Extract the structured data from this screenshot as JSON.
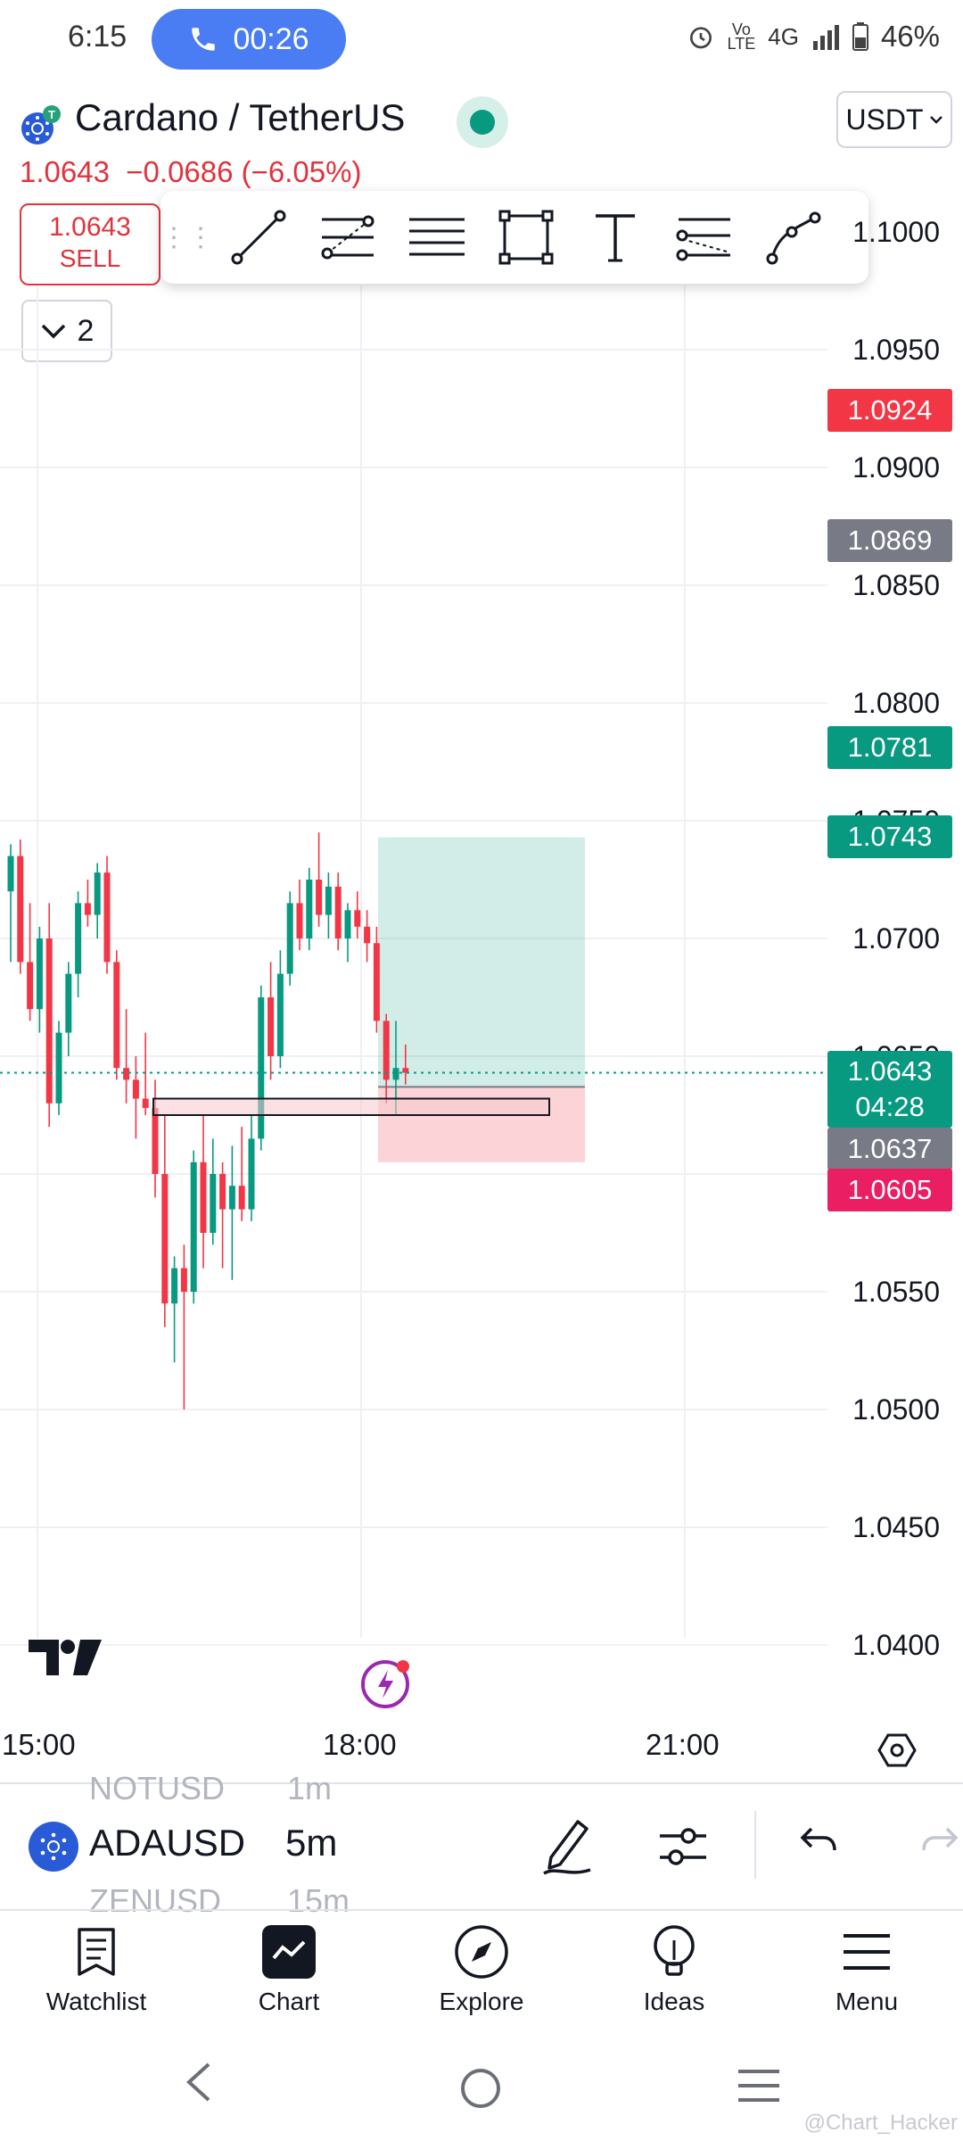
{
  "status_bar": {
    "time": "6:15",
    "call_timer": "00:26",
    "network": "4G",
    "battery": "46%"
  },
  "header": {
    "symbol_title": "Cardano / TetherUS",
    "currency": "USDT",
    "last_price": "1.0643",
    "change": "−0.0686 (−6.05%)",
    "sell_price": "1.0643",
    "sell_label": "SELL",
    "collapsed_count": "2"
  },
  "price_axis": {
    "labels": [
      "1.1000",
      "1.0950",
      "1.0900",
      "1.0850",
      "1.0800",
      "1.0750",
      "1.0700",
      "1.0650",
      "1.0600",
      "1.0550",
      "1.0500",
      "1.0450",
      "1.0400"
    ],
    "tags": {
      "high": "1.0924",
      "prev": "1.0869",
      "target2": "1.0781",
      "target": "1.0743",
      "current": "1.0643",
      "countdown": "04:28",
      "entry": "1.0637",
      "stop": "1.0605"
    }
  },
  "time_axis": [
    "15:00",
    "18:00",
    "21:00"
  ],
  "colors": {
    "up": "#089981",
    "down": "#f23645",
    "accent": "#2962ff",
    "profit_zone": "#089981",
    "loss_zone": "#f23645"
  },
  "bottom_toolbar": {
    "symbol": "ADAUSD",
    "interval": "5m",
    "ghost_symbol_top": "NOTUSD",
    "ghost_interval_top": "1m",
    "ghost_symbol_bottom": "ZENUSD",
    "ghost_interval_bottom": "15m"
  },
  "nav": [
    {
      "label": "Watchlist",
      "icon": "watchlist-icon"
    },
    {
      "label": "Chart",
      "icon": "chart-icon"
    },
    {
      "label": "Explore",
      "icon": "compass-icon"
    },
    {
      "label": "Ideas",
      "icon": "lightbulb-icon"
    },
    {
      "label": "Menu",
      "icon": "menu-icon"
    }
  ],
  "watermark": "@Chart_Hacker",
  "chart_data": {
    "type": "candlestick",
    "symbol": "ADAUSD",
    "interval": "5m",
    "ylim": [
      1.0375,
      1.1025
    ],
    "candles": [
      {
        "o": 1.072,
        "h": 1.074,
        "l": 1.069,
        "c": 1.0735
      },
      {
        "o": 1.0735,
        "h": 1.0742,
        "l": 1.0685,
        "c": 1.069
      },
      {
        "o": 1.069,
        "h": 1.0715,
        "l": 1.0665,
        "c": 1.067
      },
      {
        "o": 1.067,
        "h": 1.0705,
        "l": 1.066,
        "c": 1.07
      },
      {
        "o": 1.07,
        "h": 1.0715,
        "l": 1.062,
        "c": 1.063
      },
      {
        "o": 1.063,
        "h": 1.0665,
        "l": 1.0625,
        "c": 1.066
      },
      {
        "o": 1.066,
        "h": 1.069,
        "l": 1.065,
        "c": 1.0685
      },
      {
        "o": 1.0685,
        "h": 1.072,
        "l": 1.0675,
        "c": 1.0715
      },
      {
        "o": 1.0715,
        "h": 1.0725,
        "l": 1.0705,
        "c": 1.071
      },
      {
        "o": 1.071,
        "h": 1.0732,
        "l": 1.07,
        "c": 1.0728
      },
      {
        "o": 1.0728,
        "h": 1.0735,
        "l": 1.0685,
        "c": 1.069
      },
      {
        "o": 1.069,
        "h": 1.0695,
        "l": 1.064,
        "c": 1.0645
      },
      {
        "o": 1.0645,
        "h": 1.067,
        "l": 1.063,
        "c": 1.064
      },
      {
        "o": 1.064,
        "h": 1.065,
        "l": 1.0615,
        "c": 1.0632
      },
      {
        "o": 1.0632,
        "h": 1.066,
        "l": 1.0625,
        "c": 1.0628
      },
      {
        "o": 1.0628,
        "h": 1.064,
        "l": 1.059,
        "c": 1.06
      },
      {
        "o": 1.06,
        "h": 1.0625,
        "l": 1.0535,
        "c": 1.0545
      },
      {
        "o": 1.0545,
        "h": 1.0565,
        "l": 1.052,
        "c": 1.056
      },
      {
        "o": 1.056,
        "h": 1.057,
        "l": 1.05,
        "c": 1.055
      },
      {
        "o": 1.055,
        "h": 1.061,
        "l": 1.0545,
        "c": 1.0605
      },
      {
        "o": 1.0605,
        "h": 1.0625,
        "l": 1.056,
        "c": 1.0575
      },
      {
        "o": 1.0575,
        "h": 1.0615,
        "l": 1.057,
        "c": 1.06
      },
      {
        "o": 1.06,
        "h": 1.0605,
        "l": 1.056,
        "c": 1.0585
      },
      {
        "o": 1.0585,
        "h": 1.0612,
        "l": 1.0555,
        "c": 1.0595
      },
      {
        "o": 1.0595,
        "h": 1.062,
        "l": 1.058,
        "c": 1.0585
      },
      {
        "o": 1.0585,
        "h": 1.0625,
        "l": 1.058,
        "c": 1.0615
      },
      {
        "o": 1.0615,
        "h": 1.068,
        "l": 1.061,
        "c": 1.0675
      },
      {
        "o": 1.0675,
        "h": 1.069,
        "l": 1.064,
        "c": 1.065
      },
      {
        "o": 1.065,
        "h": 1.0695,
        "l": 1.0645,
        "c": 1.0685
      },
      {
        "o": 1.0685,
        "h": 1.072,
        "l": 1.068,
        "c": 1.0715
      },
      {
        "o": 1.0715,
        "h": 1.0725,
        "l": 1.0695,
        "c": 1.07
      },
      {
        "o": 1.07,
        "h": 1.073,
        "l": 1.0695,
        "c": 1.0725
      },
      {
        "o": 1.0725,
        "h": 1.0745,
        "l": 1.0705,
        "c": 1.071
      },
      {
        "o": 1.071,
        "h": 1.0728,
        "l": 1.07,
        "c": 1.0722
      },
      {
        "o": 1.0722,
        "h": 1.0728,
        "l": 1.0695,
        "c": 1.07
      },
      {
        "o": 1.07,
        "h": 1.0715,
        "l": 1.069,
        "c": 1.0712
      },
      {
        "o": 1.0712,
        "h": 1.072,
        "l": 1.07,
        "c": 1.0705
      },
      {
        "o": 1.0705,
        "h": 1.0712,
        "l": 1.069,
        "c": 1.0698
      },
      {
        "o": 1.0698,
        "h": 1.0705,
        "l": 1.066,
        "c": 1.0665
      },
      {
        "o": 1.0665,
        "h": 1.0668,
        "l": 1.063,
        "c": 1.064
      },
      {
        "o": 1.064,
        "h": 1.0665,
        "l": 1.0625,
        "c": 1.0645
      },
      {
        "o": 1.0645,
        "h": 1.0655,
        "l": 1.0638,
        "c": 1.0643
      }
    ],
    "position": {
      "type": "long",
      "entry": 1.0637,
      "target": 1.0743,
      "stop": 1.0605
    },
    "zone": {
      "top": 1.0632,
      "bottom": 1.0625
    },
    "current_price": 1.0643
  }
}
